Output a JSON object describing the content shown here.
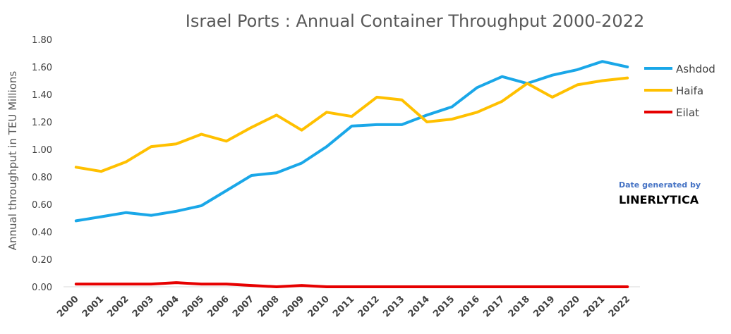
{
  "chart_data": {
    "type": "line",
    "title": "Israel Ports : Annual Container Throughput 2000-2022",
    "xlabel": "",
    "ylabel": "Annual throughput in TEU Millions",
    "ylim": [
      0,
      1.8
    ],
    "yticks": [
      "0.00",
      "0.20",
      "0.40",
      "0.60",
      "0.80",
      "1.00",
      "1.20",
      "1.40",
      "1.60",
      "1.80"
    ],
    "grid": false,
    "legend_position": "right",
    "categories": [
      "2000",
      "2001",
      "2002",
      "2003",
      "2004",
      "2005",
      "2006",
      "2007",
      "2008",
      "2009",
      "2010",
      "2011",
      "2012",
      "2013",
      "2014",
      "2015",
      "2016",
      "2017",
      "2018",
      "2019",
      "2020",
      "2021",
      "2022"
    ],
    "series": [
      {
        "name": "Ashdod",
        "color": "#1aa7e8",
        "values": [
          0.48,
          0.51,
          0.54,
          0.52,
          0.55,
          0.59,
          0.7,
          0.81,
          0.83,
          0.9,
          1.02,
          1.17,
          1.18,
          1.18,
          1.25,
          1.31,
          1.45,
          1.53,
          1.48,
          1.54,
          1.58,
          1.64,
          1.6
        ]
      },
      {
        "name": "Haifa",
        "color": "#ffc000",
        "values": [
          0.87,
          0.84,
          0.91,
          1.02,
          1.04,
          1.11,
          1.06,
          1.16,
          1.25,
          1.14,
          1.27,
          1.24,
          1.38,
          1.36,
          1.2,
          1.22,
          1.27,
          1.35,
          1.48,
          1.38,
          1.47,
          1.5,
          1.52
        ]
      },
      {
        "name": "Eilat",
        "color": "#e60000",
        "values": [
          0.02,
          0.02,
          0.02,
          0.02,
          0.03,
          0.02,
          0.02,
          0.01,
          0.0,
          0.01,
          0.0,
          0.0,
          0.0,
          0.0,
          0.0,
          0.0,
          0.0,
          0.0,
          0.0,
          0.0,
          0.0,
          0.0,
          0.0
        ]
      }
    ]
  },
  "annotation": {
    "line1": "Date generated by",
    "line2": "LINERLYTICA"
  }
}
